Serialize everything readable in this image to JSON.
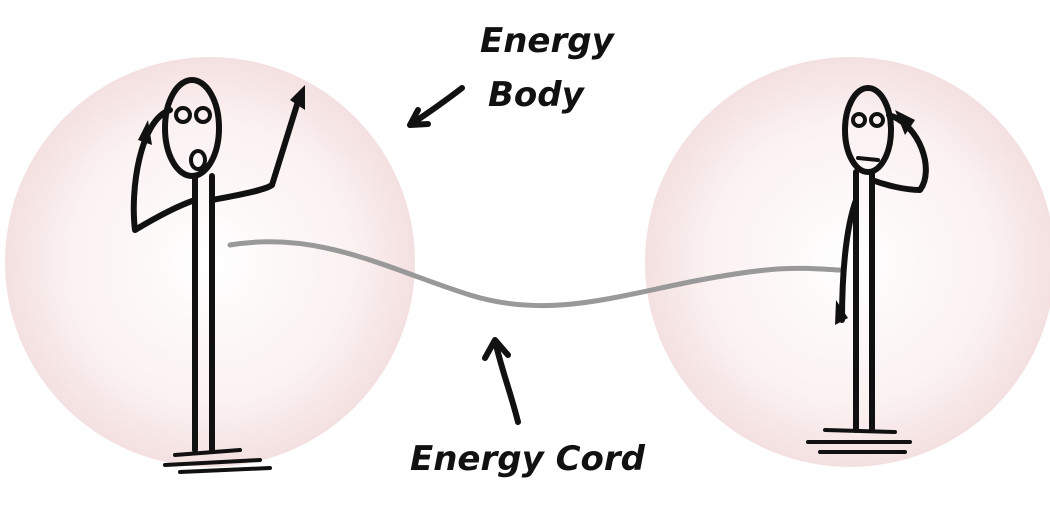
{
  "annotations": [
    {
      "lines": [
        "Energy",
        "Body"
      ]
    },
    {
      "lines": [
        "Energy Cord"
      ]
    }
  ]
}
